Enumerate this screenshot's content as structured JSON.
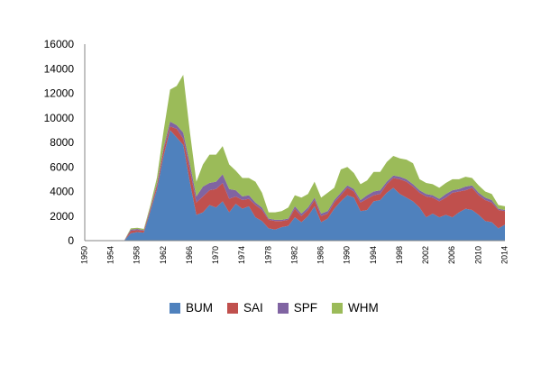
{
  "chart_data": {
    "type": "area",
    "stacked": true,
    "ylim": [
      0,
      16000
    ],
    "yticks": [
      0,
      2000,
      4000,
      6000,
      8000,
      10000,
      12000,
      14000,
      16000
    ],
    "xlim": [
      1950,
      2014
    ],
    "xticks": [
      1950,
      1954,
      1958,
      1962,
      1966,
      1970,
      1974,
      1978,
      1982,
      1986,
      1990,
      1994,
      1998,
      2002,
      2006,
      2010,
      2014
    ],
    "xtick_orientation": "vertical",
    "legend_position": "bottom",
    "grid": false,
    "x": [
      1950,
      1951,
      1952,
      1953,
      1954,
      1955,
      1956,
      1957,
      1958,
      1959,
      1960,
      1961,
      1962,
      1963,
      1964,
      1965,
      1966,
      1967,
      1968,
      1969,
      1970,
      1971,
      1972,
      1973,
      1974,
      1975,
      1976,
      1977,
      1978,
      1979,
      1980,
      1981,
      1982,
      1983,
      1984,
      1985,
      1986,
      1987,
      1988,
      1989,
      1990,
      1991,
      1992,
      1993,
      1994,
      1995,
      1996,
      1997,
      1998,
      1999,
      2000,
      2001,
      2002,
      2003,
      2004,
      2005,
      2006,
      2007,
      2008,
      2009,
      2010,
      2011,
      2012,
      2013,
      2014
    ],
    "series": [
      {
        "name": "BUM",
        "color": "#4f81bd",
        "values": [
          0,
          0,
          0,
          0,
          0,
          0,
          0,
          600,
          700,
          650,
          2400,
          4200,
          6900,
          9000,
          8400,
          7800,
          4800,
          2100,
          2300,
          2900,
          2700,
          3200,
          2300,
          3000,
          2600,
          2800,
          1900,
          1600,
          1000,
          900,
          1100,
          1200,
          1900,
          1500,
          2000,
          2800,
          1500,
          1800,
          2600,
          3200,
          3700,
          3500,
          2400,
          2500,
          3200,
          3300,
          3900,
          4300,
          3800,
          3500,
          3200,
          2700,
          1900,
          2200,
          1900,
          2100,
          1900,
          2300,
          2600,
          2500,
          2100,
          1600,
          1500,
          1000,
          1300
        ]
      },
      {
        "name": "SAI",
        "color": "#c0504d",
        "values": [
          0,
          0,
          0,
          0,
          0,
          0,
          0,
          200,
          150,
          150,
          200,
          300,
          500,
          300,
          700,
          500,
          1000,
          1000,
          1300,
          1200,
          1500,
          1500,
          1100,
          600,
          700,
          600,
          1000,
          900,
          700,
          700,
          500,
          500,
          700,
          500,
          500,
          500,
          500,
          400,
          500,
          500,
          600,
          500,
          700,
          900,
          500,
          500,
          700,
          800,
          1200,
          1300,
          1200,
          1200,
          1700,
          1300,
          1300,
          1400,
          2000,
          1700,
          1500,
          1800,
          1600,
          1700,
          1600,
          1500,
          1100
        ]
      },
      {
        "name": "SPF",
        "color": "#8064a2",
        "values": [
          0,
          0,
          0,
          0,
          0,
          0,
          0,
          100,
          100,
          50,
          100,
          150,
          200,
          400,
          300,
          500,
          500,
          500,
          800,
          600,
          600,
          700,
          800,
          500,
          300,
          300,
          200,
          200,
          100,
          100,
          100,
          100,
          200,
          200,
          200,
          200,
          200,
          200,
          200,
          200,
          200,
          200,
          200,
          300,
          300,
          300,
          200,
          200,
          200,
          200,
          200,
          200,
          200,
          200,
          200,
          300,
          200,
          200,
          300,
          200,
          200,
          200,
          200,
          100,
          100
        ]
      },
      {
        "name": "WHM",
        "color": "#9bbb59",
        "values": [
          0,
          0,
          0,
          0,
          0,
          0,
          0,
          100,
          100,
          100,
          200,
          500,
          1300,
          2600,
          3200,
          4700,
          2600,
          1200,
          1800,
          2300,
          2200,
          2300,
          2000,
          1600,
          1500,
          1400,
          1700,
          1200,
          500,
          600,
          700,
          900,
          900,
          1300,
          1100,
          1300,
          1300,
          1500,
          1000,
          1900,
          1500,
          1300,
          1300,
          1200,
          1600,
          1500,
          1600,
          1600,
          1500,
          1600,
          1700,
          900,
          900,
          900,
          900,
          900,
          900,
          800,
          800,
          600,
          600,
          500,
          500,
          300,
          300
        ]
      }
    ]
  }
}
